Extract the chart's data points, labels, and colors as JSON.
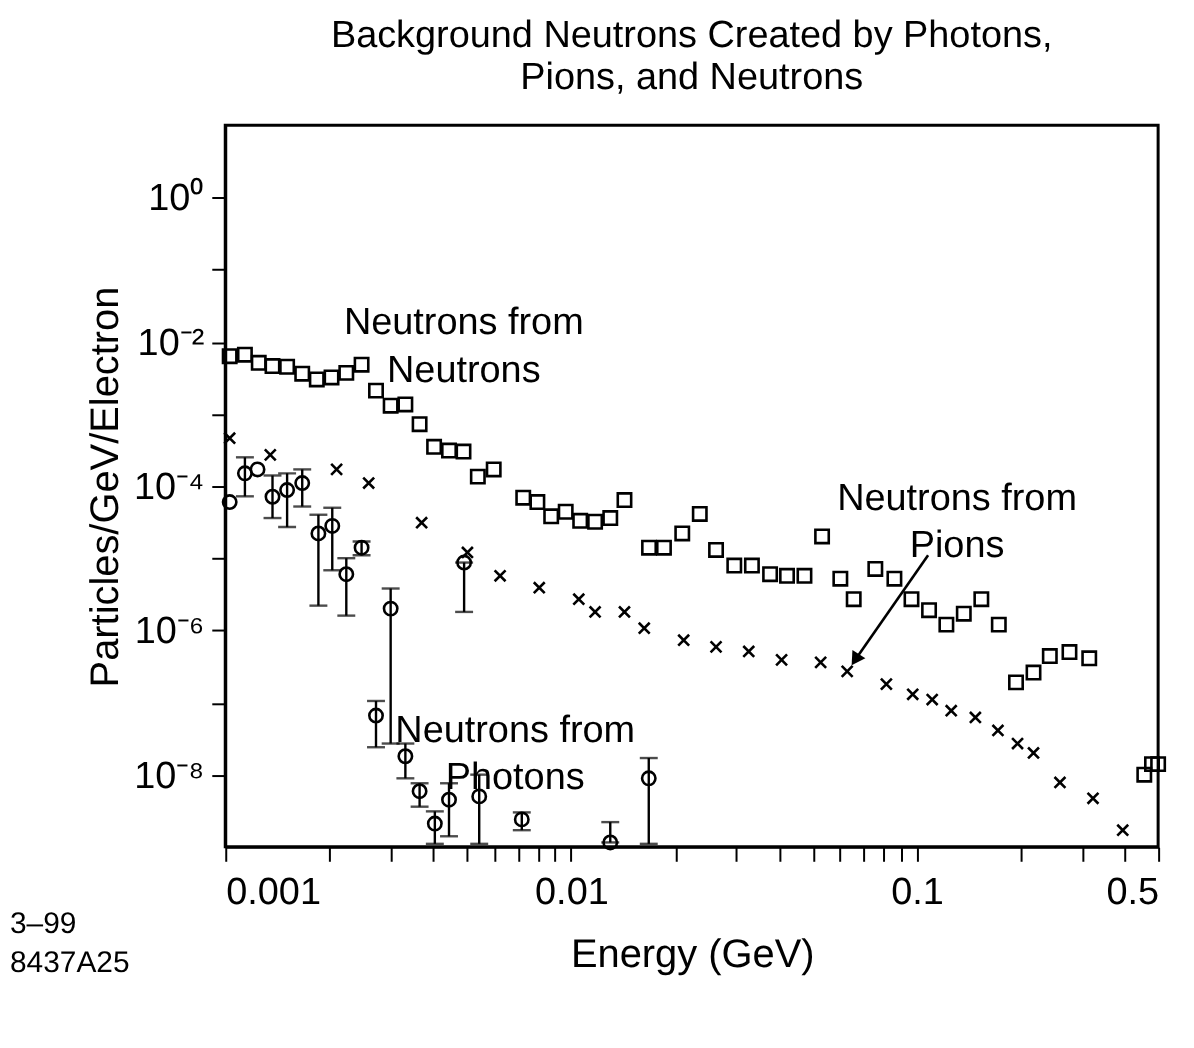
{
  "chart_data": {
    "type": "scatter",
    "title": "Background Neutrons Created by Photons,\nPions, and Neutrons",
    "xlabel": "Energy  (GeV)",
    "ylabel": "Particles/GeV/Electron",
    "log": "xy",
    "grid": false,
    "legend": false,
    "xlim": [
      0.001,
      0.5
    ],
    "ylim": [
      1e-09,
      10
    ],
    "xticks": [
      0.001,
      {
        "value": 0.002,
        "label": null
      },
      {
        "value": 0.003,
        "label": null
      },
      {
        "value": 0.004,
        "label": null
      },
      {
        "value": 0.005,
        "label": null
      },
      {
        "value": 0.006,
        "label": null
      },
      {
        "value": 0.007,
        "label": null
      },
      {
        "value": 0.008,
        "label": null
      },
      {
        "value": 0.009,
        "label": null
      },
      0.01,
      {
        "value": 0.02,
        "label": null
      },
      {
        "value": 0.03,
        "label": null
      },
      {
        "value": 0.04,
        "label": null
      },
      {
        "value": 0.05,
        "label": null
      },
      {
        "value": 0.06,
        "label": null
      },
      {
        "value": 0.07,
        "label": null
      },
      {
        "value": 0.08,
        "label": null
      },
      {
        "value": 0.09,
        "label": null
      },
      0.1,
      {
        "value": 0.2,
        "label": null
      },
      {
        "value": 0.3,
        "label": null
      },
      {
        "value": 0.4,
        "label": null
      },
      0.5
    ],
    "yticks": [
      {
        "value": 1,
        "label": "10⁰"
      },
      {
        "value": 0.1,
        "label": null
      },
      {
        "value": 0.01,
        "label": "10⁻²"
      },
      {
        "value": 0.001,
        "label": null
      },
      {
        "value": 0.0001,
        "label": "10⁻⁴"
      },
      {
        "value": 1e-05,
        "label": null
      },
      {
        "value": 1e-06,
        "label": "10⁻⁶"
      },
      {
        "value": 1e-07,
        "label": null
      },
      {
        "value": 1e-08,
        "label": "10⁻⁸"
      }
    ],
    "annotations": [
      "3–99",
      "8437A25"
    ],
    "series": [
      {
        "name": "Neutrons from\nNeutrons",
        "color": "#000000",
        "marker": "square",
        "x": [
          0.00103,
          0.00114,
          0.00125,
          0.00137,
          0.00151,
          0.00167,
          0.00184,
          0.00203,
          0.00224,
          0.00248,
          0.00273,
          0.00301,
          0.00332,
          0.00365,
          0.00402,
          0.00444,
          0.00489,
          0.00538,
          0.00598,
          0.00728,
          0.008,
          0.00877,
          0.00966,
          0.01064,
          0.01175,
          0.013,
          0.01429,
          0.01683,
          0.01859,
          0.021,
          0.0236,
          0.0263,
          0.0297,
          0.0334,
          0.0377,
          0.0422,
          0.0474,
          0.0533,
          0.0602,
          0.0658,
          0.076,
          0.0863,
          0.0967,
          0.1087,
          0.122,
          0.137,
          0.154,
          0.173,
          0.194,
          0.218,
          0.243,
          0.277,
          0.316,
          0.456,
          0.48,
          0.5
        ],
        "values": [
          0.0063,
          0.0066,
          0.0051,
          0.0046,
          0.0045,
          0.0036,
          0.003,
          0.0032,
          0.0037,
          0.0048,
          0.0021,
          0.0013,
          0.00135,
          0.00072,
          0.00035,
          0.00031,
          0.0003,
          0.000135,
          0.00017,
          6.9e-05,
          6e-05,
          3.8e-05,
          4.4e-05,
          3.3e-05,
          3.2e-05,
          3.6e-05,
          6.4e-05,
          1.4e-05,
          1.4e-05,
          2.2e-05,
          4.1e-05,
          1.3e-05,
          7.9e-06,
          7.9e-06,
          6e-06,
          5.7e-06,
          5.7e-06,
          2e-05,
          5.2e-06,
          2.7e-06,
          7.1e-06,
          5.2e-06,
          2.7e-06,
          1.9e-06,
          1.2e-06,
          1.7e-06,
          2.7e-06,
          1.2e-06,
          1.9e-07,
          2.6e-07,
          4.4e-07,
          5e-07,
          4.1e-07,
          1e-08,
          1.4e-08,
          1.4e-08
        ]
      },
      {
        "name": "Neutrons from\nPions",
        "color": "#000000",
        "marker": "cross",
        "x": [
          0.00103,
          0.00135,
          0.0021,
          0.0026,
          0.0037,
          0.00502,
          0.00624,
          0.0081,
          0.01054,
          0.01175,
          0.01429,
          0.0163,
          0.0212,
          0.0263,
          0.0327,
          0.0407,
          0.0528,
          0.063,
          0.0818,
          0.0975,
          0.111,
          0.126,
          0.148,
          0.172,
          0.196,
          0.218,
          0.26,
          0.324,
          0.395
        ],
        "values": [
          0.00046,
          0.00027,
          0.00017,
          0.00011,
          3.1e-05,
          1.2e-05,
          5.7e-06,
          3.9e-06,
          2.7e-06,
          1.8e-06,
          1.8e-06,
          1.07e-06,
          7.3e-07,
          5.9e-07,
          5.1e-07,
          3.9e-07,
          3.6e-07,
          2.7e-07,
          1.8e-07,
          1.3e-07,
          1.1e-07,
          7.7e-08,
          6.2e-08,
          4.1e-08,
          2.7e-08,
          2e-08,
          7.8e-09,
          4.7e-09,
          1.7e-09
        ]
      },
      {
        "name": "Neutrons from\nPhotons",
        "color": "#000000",
        "marker": "circle",
        "x": [
          0.00103,
          0.00114,
          0.00124,
          0.00137,
          0.00151,
          0.00167,
          0.00186,
          0.00204,
          0.00224,
          0.00248,
          0.00273,
          0.00301,
          0.00332,
          0.00365,
          0.00404,
          0.00444,
          0.00491,
          0.00543,
          0.00721,
          0.013,
          0.0168
        ],
        "values": [
          6e-05,
          0.00015,
          0.00017,
          7.1e-05,
          8.8e-05,
          0.00011,
          2.2e-05,
          2.8e-05,
          6e-06,
          1.4e-05,
          6.6e-08,
          2e-06,
          1.8e-08,
          5.9e-09,
          2.1e-09,
          4.5e-09,
          8.7e-06,
          5e-09,
          2.4e-09,
          1.15e-09,
          8.9e-09
        ],
        "errors": [
          null,
          [
            7.2e-05,
            0.00025
          ],
          null,
          [
            3.6e-05,
            0.00014
          ],
          [
            2.7e-05,
            0.00015
          ],
          [
            5.2e-05,
            0.00017
          ],
          [
            2.2e-06,
            4e-05
          ],
          [
            6.8e-06,
            5e-05
          ],
          [
            1.6e-06,
            1e-05
          ],
          [
            1.1e-05,
            1.7e-05
          ],
          [
            2.4e-08,
            1.05e-07
          ],
          [
            2.7e-08,
            3.8e-06
          ],
          [
            8.9e-09,
            2.7e-08
          ],
          [
            3.6e-09,
            7.6e-09
          ],
          [
            1.1e-09,
            3.1e-09
          ],
          [
            1.4e-09,
            7.6e-09
          ],
          [
            1.8e-06,
            8.7e-06
          ],
          [
            1.1e-09,
            1e-08
          ],
          [
            1.7e-09,
            3e-09
          ],
          [
            1.15e-09,
            2.2e-09
          ],
          [
            1.1e-09,
            1.7e-08
          ]
        ]
      }
    ]
  }
}
